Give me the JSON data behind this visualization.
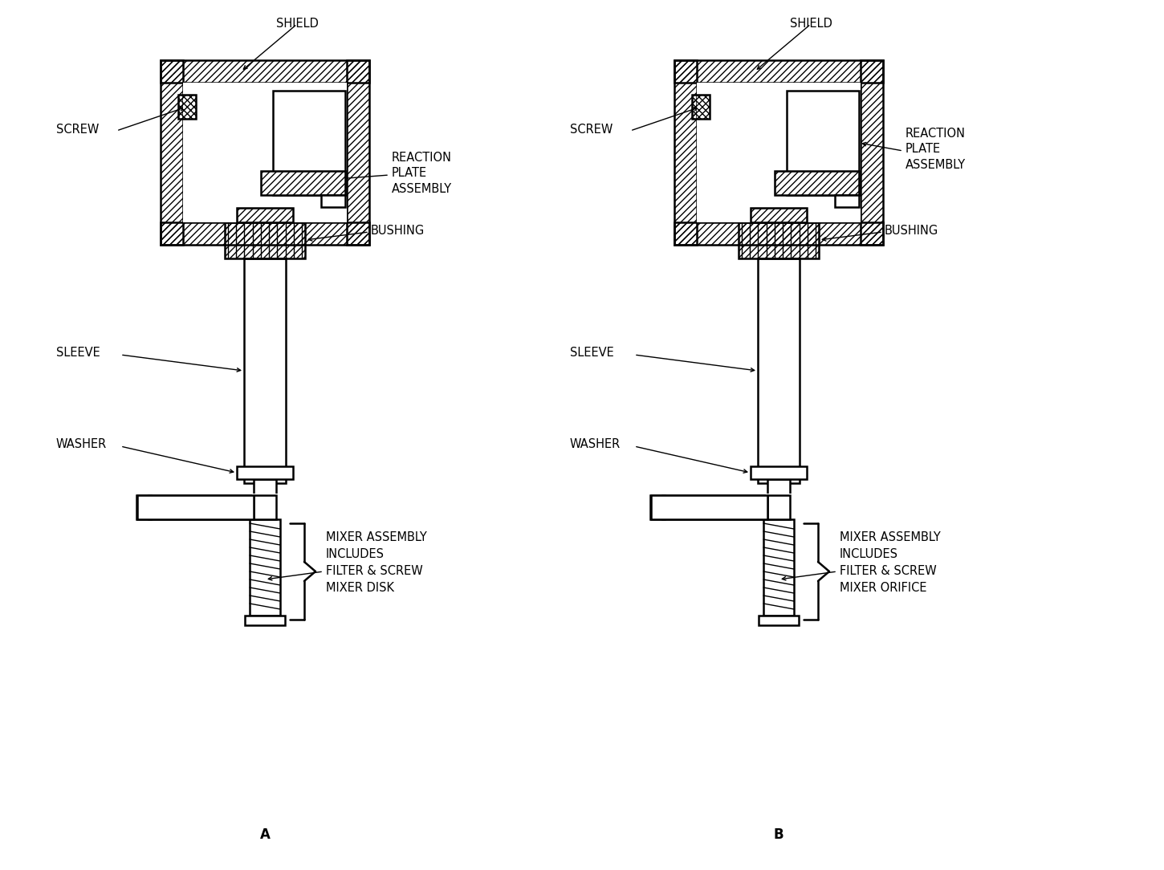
{
  "bg_color": "#ffffff",
  "line_color": "#000000",
  "title_a": "A",
  "title_b": "B",
  "labels": {
    "shield": "SHIELD",
    "screw": "SCREW",
    "reaction_plate": "REACTION\nPLATE\nASSEMBLY",
    "bushing": "BUSHING",
    "sleeve": "SLEEVE",
    "washer": "WASHER",
    "mixer_a": "MIXER ASSEMBLY\nINCLUDES\nFILTER & SCREW\nMIXER DISK",
    "mixer_b": "MIXER ASSEMBLY\nINCLUDES\nFILTER & SCREW\nMIXER ORIFICE"
  },
  "fig_width": 14.5,
  "fig_height": 10.84
}
